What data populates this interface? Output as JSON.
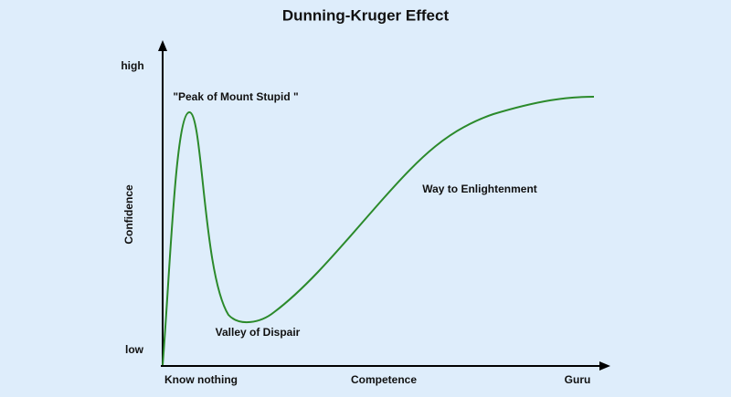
{
  "title": "Dunning-Kruger Effect",
  "y_axis": {
    "label": "Confidence",
    "high": "high",
    "low": "low"
  },
  "x_axis": {
    "label": "Competence",
    "start": "Know nothing",
    "end": "Guru"
  },
  "annotations": [
    "\"Peak of Mount Stupid \"",
    "Valley of Dispair",
    "Way to Enlightenment"
  ]
}
